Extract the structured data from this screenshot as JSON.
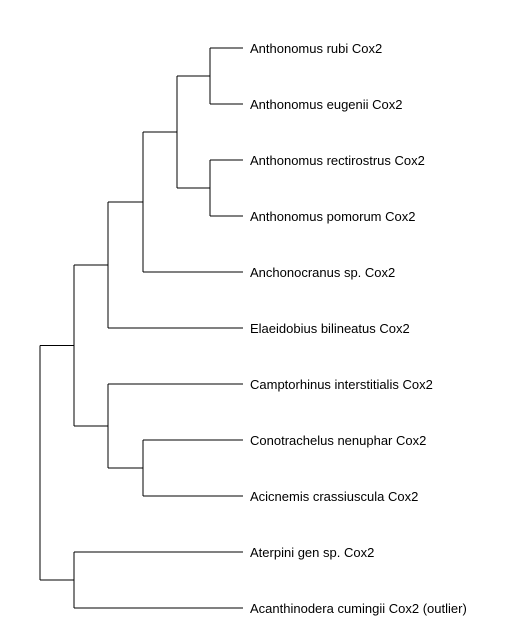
{
  "tree": {
    "leaves": [
      "Anthonomus rubi Cox2",
      "Anthonomus eugenii Cox2",
      "Anthonomus rectirostrus Cox2",
      "Anthonomus pomorum Cox2",
      "Anchonocranus sp. Cox2",
      "Elaeidobius bilineatus Cox2",
      "Camptorhinus interstitialis Cox2",
      "Conotrachelus nenuphar Cox2",
      "Acicnemis crassiuscula Cox2",
      "Aterpini gen sp. Cox2",
      "Acanthinodera cumingii Cox2 (outlier)"
    ],
    "topology": [
      [
        [
          [
            [
              [
                0,
                1
              ],
              [
                2,
                3
              ]
            ],
            4
          ],
          5
        ],
        [
          6,
          [
            7,
            8
          ]
        ]
      ],
      [
        9,
        10
      ]
    ],
    "line_color": "#000000",
    "background": "#ffffff"
  }
}
